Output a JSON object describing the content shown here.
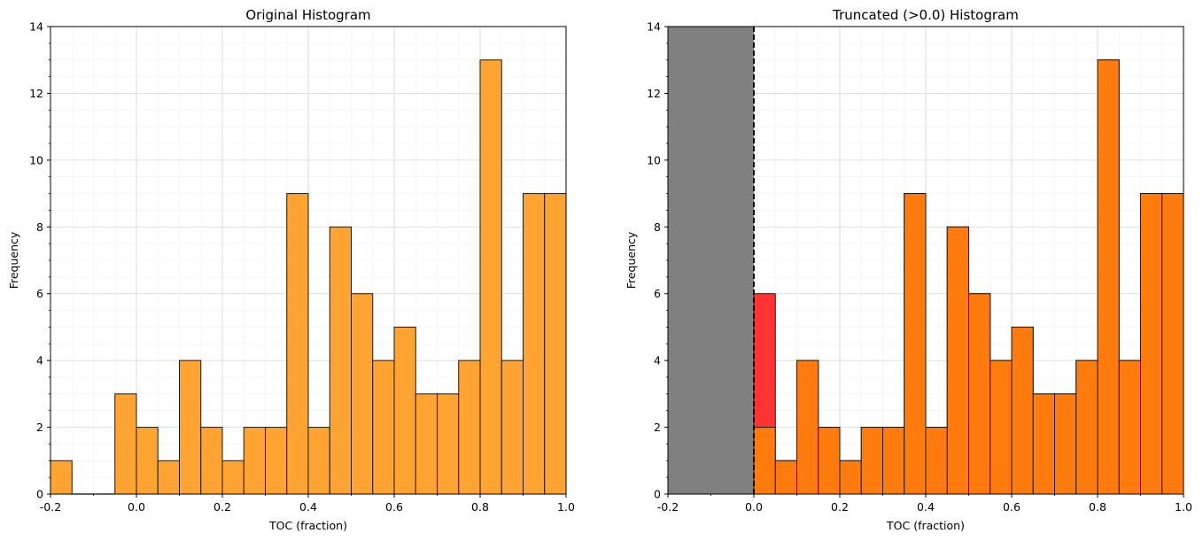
{
  "chart_data": [
    {
      "type": "bar",
      "title": "Original Histogram",
      "xlabel": "TOC (fraction)",
      "ylabel": "Frequency",
      "xlim": [
        -0.2,
        1.0
      ],
      "ylim": [
        0,
        14
      ],
      "xticks": [
        "-0.2",
        "0.0",
        "0.2",
        "0.4",
        "0.6",
        "0.8",
        "1.0"
      ],
      "yticks": [
        "0",
        "2",
        "4",
        "6",
        "8",
        "10",
        "12",
        "14"
      ],
      "grid": true,
      "bin_edges": [
        -0.2,
        -0.15,
        -0.1,
        -0.05,
        0.0,
        0.05,
        0.1,
        0.15,
        0.2,
        0.25,
        0.3,
        0.35,
        0.4,
        0.45,
        0.5,
        0.55,
        0.6,
        0.65,
        0.7,
        0.75,
        0.8,
        0.85,
        0.9,
        0.95,
        1.0
      ],
      "series": [
        {
          "color": "#ffa333",
          "values": [
            1,
            0,
            0,
            3,
            2,
            1,
            4,
            2,
            1,
            2,
            2,
            9,
            2,
            8,
            6,
            4,
            5,
            3,
            3,
            4,
            13,
            4,
            9,
            9
          ]
        }
      ]
    },
    {
      "type": "bar",
      "title": "Truncated (>0.0) Histogram",
      "xlabel": "TOC (fraction)",
      "ylabel": "Frequency",
      "xlim": [
        -0.2,
        1.0
      ],
      "ylim": [
        0,
        14
      ],
      "xticks": [
        "-0.2",
        "0.0",
        "0.2",
        "0.4",
        "0.6",
        "0.8",
        "1.0"
      ],
      "yticks": [
        "0",
        "2",
        "4",
        "6",
        "8",
        "10",
        "12",
        "14"
      ],
      "grid": true,
      "truncation_value": 0.0,
      "excluded_region": [
        -0.2,
        0.0
      ],
      "excluded_color": "#808080",
      "bin_edges": [
        0.0,
        0.05,
        0.1,
        0.15,
        0.2,
        0.25,
        0.3,
        0.35,
        0.4,
        0.45,
        0.5,
        0.55,
        0.6,
        0.65,
        0.7,
        0.75,
        0.8,
        0.85,
        0.9,
        0.95,
        1.0
      ],
      "series": [
        {
          "color": "#ff3333",
          "values": [
            6,
            1,
            4,
            2,
            1,
            2,
            2,
            9,
            2,
            8,
            6,
            4,
            5,
            3,
            3,
            4,
            13,
            4,
            9,
            9
          ]
        },
        {
          "color": "#ff7b0e",
          "values": [
            2,
            1,
            4,
            2,
            1,
            2,
            2,
            9,
            2,
            8,
            6,
            4,
            5,
            3,
            3,
            4,
            13,
            4,
            9,
            9
          ]
        }
      ]
    }
  ]
}
